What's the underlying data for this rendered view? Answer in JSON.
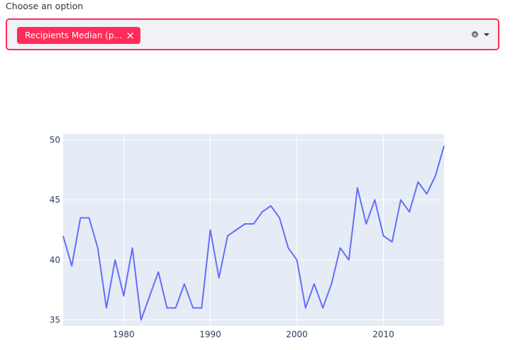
{
  "multiselect": {
    "label": "Choose an option",
    "selected_tag": "Recipients Median (p...",
    "remove_glyph": "×"
  },
  "colors": {
    "accent": "#ff2b58",
    "input_bg": "#f0f2f6",
    "plot_bg": "#e5ecf6",
    "line": "#636efa"
  },
  "chart_data": {
    "type": "line",
    "x": [
      1973,
      1974,
      1975,
      1976,
      1977,
      1978,
      1979,
      1980,
      1981,
      1982,
      1983,
      1984,
      1985,
      1986,
      1987,
      1988,
      1989,
      1990,
      1991,
      1992,
      1993,
      1994,
      1995,
      1996,
      1997,
      1998,
      1999,
      2000,
      2001,
      2002,
      2003,
      2004,
      2005,
      2006,
      2007,
      2008,
      2009,
      2010,
      2011,
      2012,
      2013,
      2014,
      2015,
      2016,
      2017
    ],
    "values": [
      42,
      39.5,
      43.5,
      43.5,
      41,
      36,
      40,
      37,
      41,
      35,
      37,
      39,
      36,
      36,
      38,
      36,
      36,
      42.5,
      38.5,
      42,
      42.5,
      43,
      43,
      44,
      44.5,
      43.5,
      41,
      40,
      36,
      38,
      36,
      38,
      41,
      40,
      46,
      43,
      45,
      42,
      41.5,
      45,
      44,
      46.5,
      45.5,
      47,
      49.5
    ],
    "xlim": [
      1973,
      2017
    ],
    "ylim": [
      34.5,
      50.5
    ],
    "xticks": [
      1980,
      1990,
      2000,
      2010
    ],
    "yticks": [
      35,
      40,
      45,
      50
    ],
    "grid": true,
    "legend": "none"
  }
}
